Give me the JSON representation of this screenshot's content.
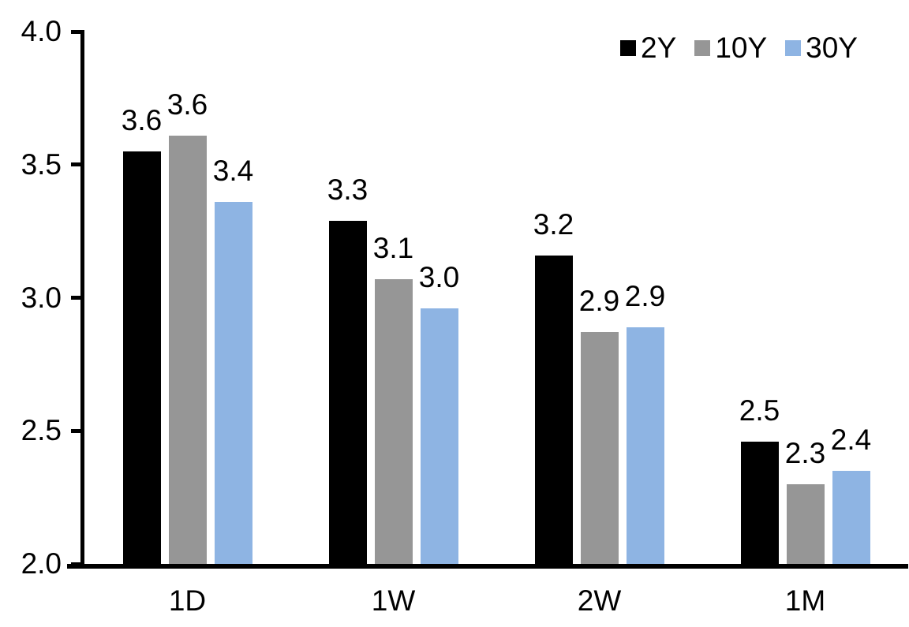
{
  "chart_data": {
    "type": "bar",
    "title": "",
    "xlabel": "",
    "ylabel": "",
    "categories": [
      "1D",
      "1W",
      "2W",
      "1M"
    ],
    "series": [
      {
        "name": "2Y",
        "color": "#000000",
        "values": [
          3.55,
          3.29,
          3.16,
          2.46
        ],
        "labels": [
          "3.6",
          "3.3",
          "3.2",
          "2.5"
        ]
      },
      {
        "name": "10Y",
        "color": "#969696",
        "values": [
          3.61,
          3.07,
          2.87,
          2.3
        ],
        "labels": [
          "3.6",
          "3.1",
          "2.9",
          "2.3"
        ]
      },
      {
        "name": "30Y",
        "color": "#8EB4E3",
        "values": [
          3.36,
          2.96,
          2.89,
          2.35
        ],
        "labels": [
          "3.4",
          "3.0",
          "2.9",
          "2.4"
        ]
      }
    ],
    "ylim": [
      2.0,
      4.0
    ],
    "yticks": [
      4.0,
      3.5,
      3.0,
      2.5,
      2.0
    ],
    "ytick_labels": [
      "4.0",
      "3.5",
      "3.0",
      "2.5",
      "2.0"
    ],
    "grid": false,
    "legend_position": "top-right",
    "data_labels_shown": true
  },
  "legend": {
    "items": [
      {
        "label": "2Y",
        "color": "#000000"
      },
      {
        "label": "10Y",
        "color": "#969696"
      },
      {
        "label": "30Y",
        "color": "#8EB4E3"
      }
    ]
  },
  "colors": {
    "axis": "#000000",
    "text": "#000000",
    "background": "#FFFFFF"
  }
}
